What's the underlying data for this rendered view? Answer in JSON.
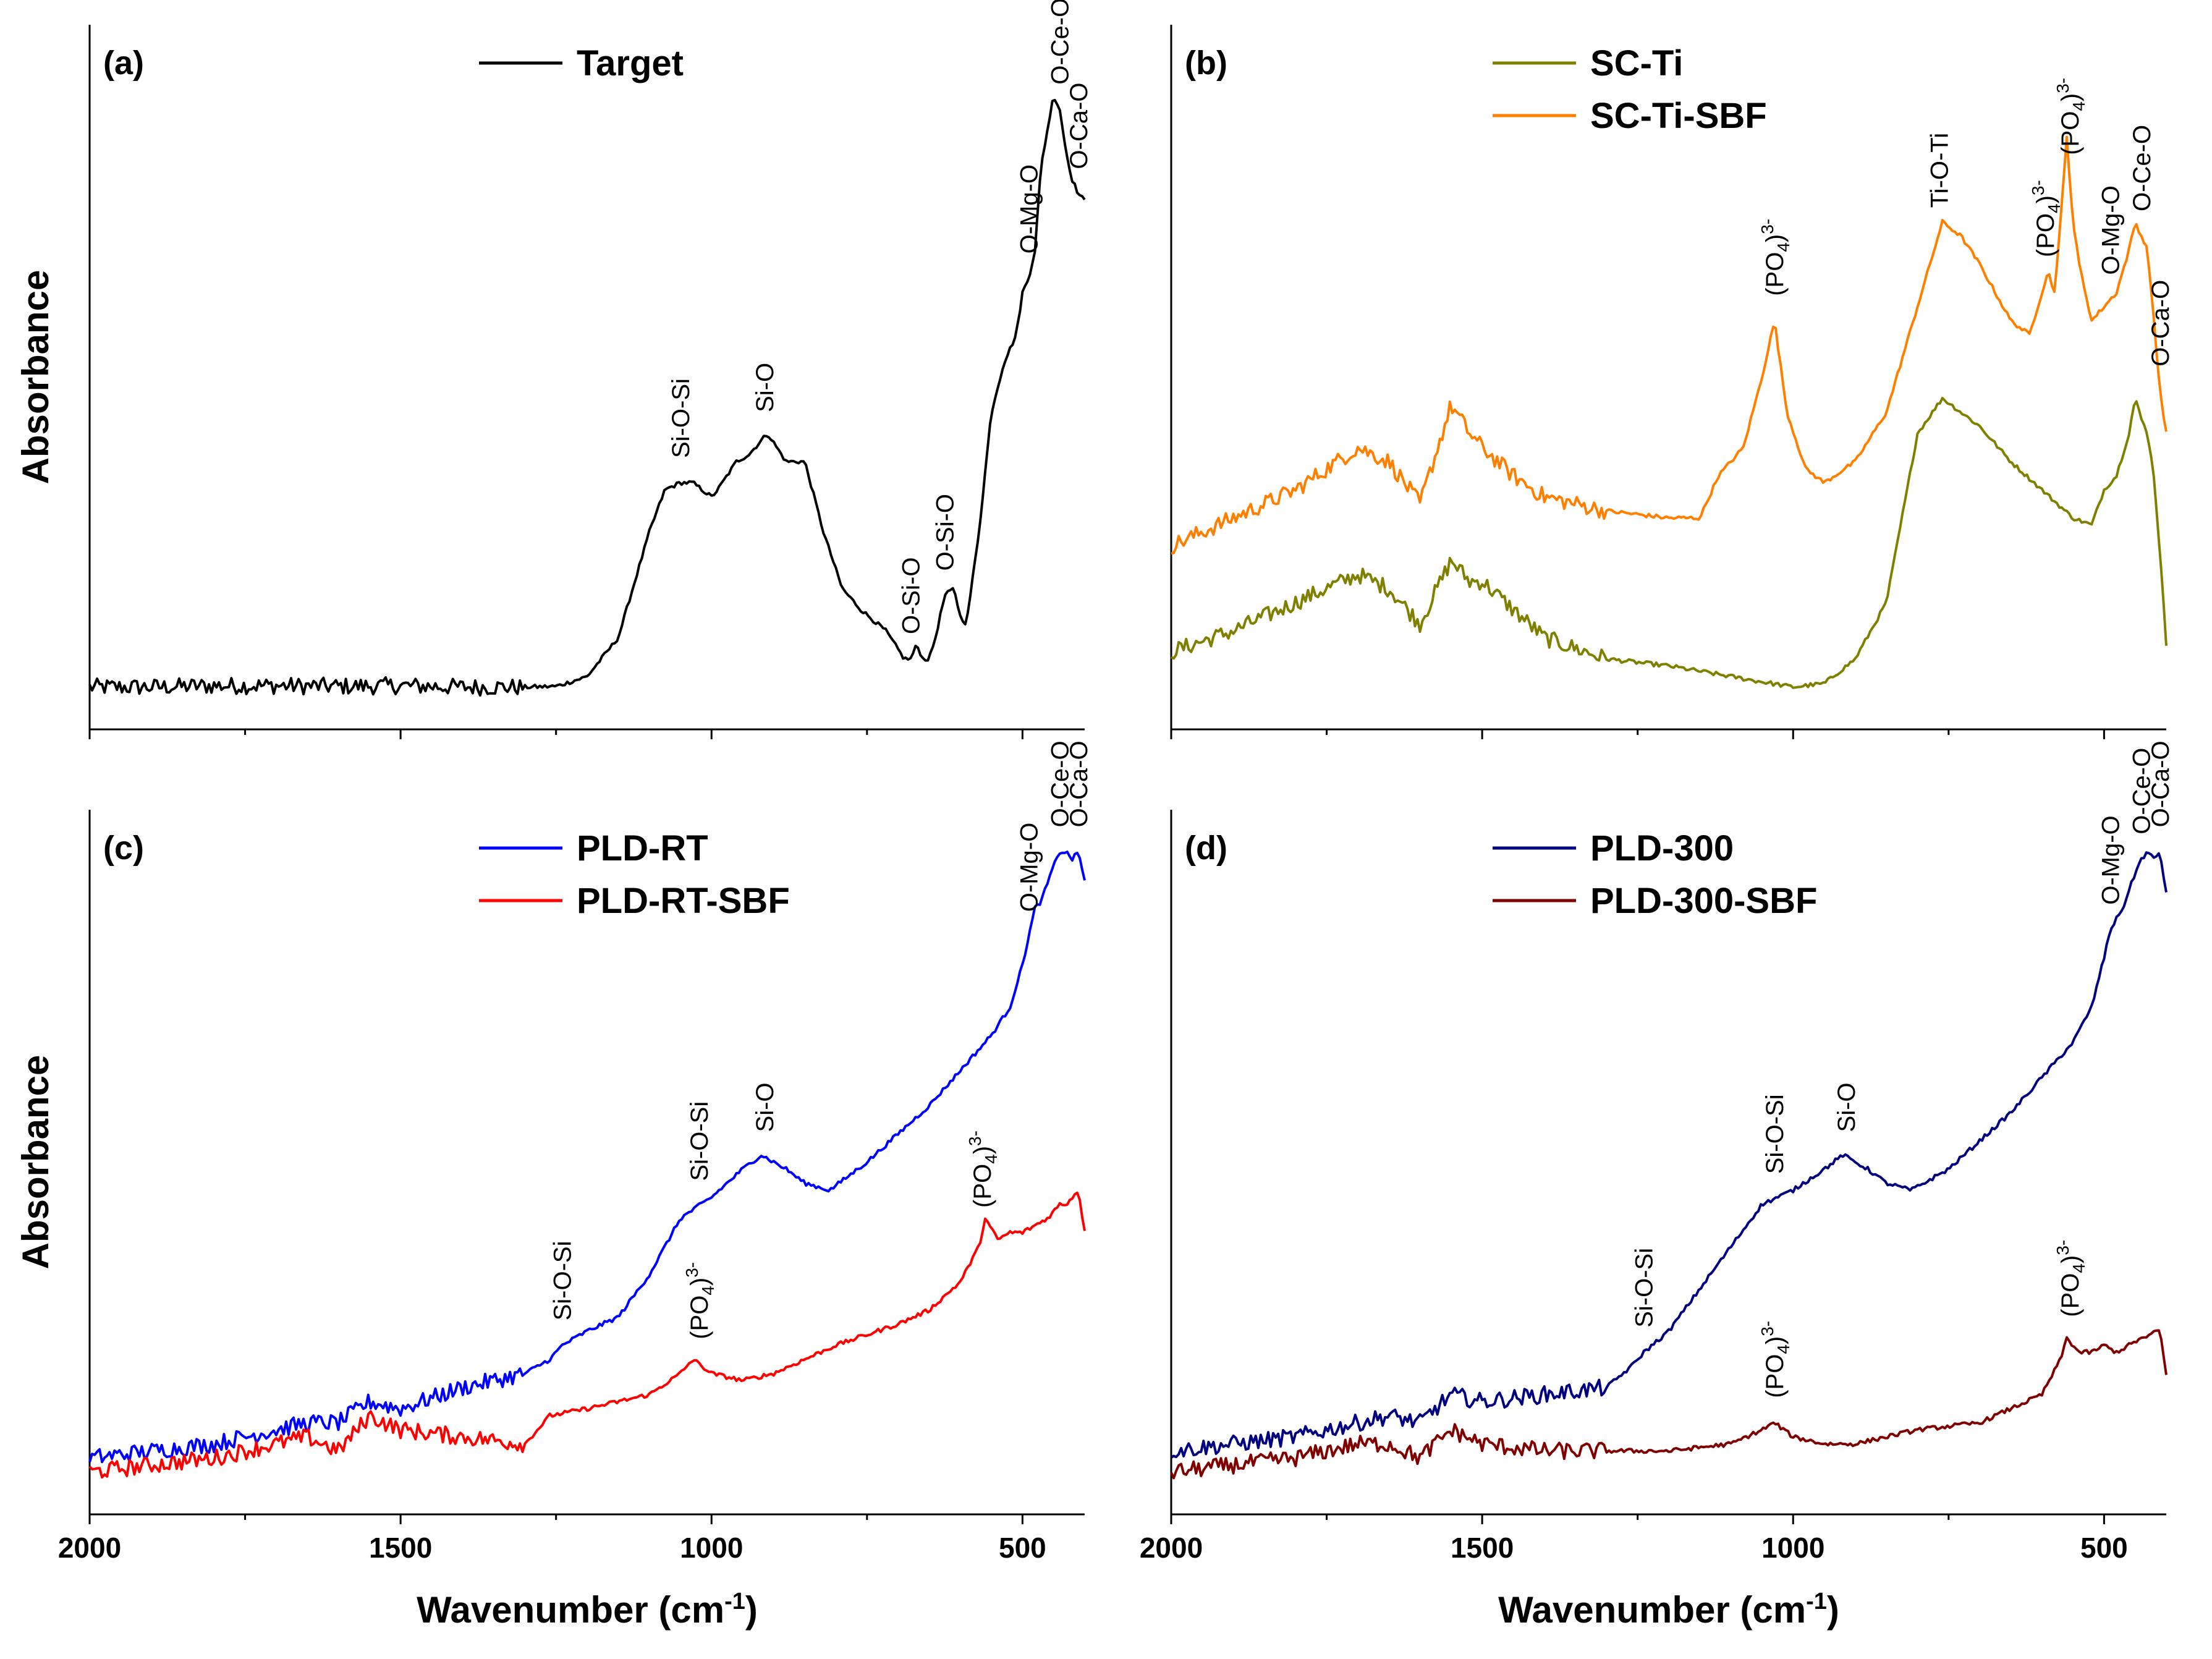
{
  "chart_data": [
    {
      "type": "line",
      "panel": "(a)",
      "ylabel": "Absorbance",
      "xlabel": "",
      "xlim": [
        2000,
        400
      ],
      "ylim": [
        0,
        1
      ],
      "xticks": [
        2000,
        1500,
        1000,
        500
      ],
      "tick_labels_shown": false,
      "legend": "top-center",
      "series": [
        {
          "name": "Target",
          "color": "#000000",
          "x": [
            2000,
            1900,
            1800,
            1700,
            1600,
            1500,
            1400,
            1300,
            1250,
            1200,
            1150,
            1100,
            1075,
            1050,
            1030,
            1000,
            990,
            960,
            940,
            910,
            880,
            850,
            820,
            790,
            760,
            720,
            690,
            680,
            670,
            660,
            650,
            640,
            625,
            610,
            600,
            590,
            570,
            550,
            530,
            510,
            500,
            490,
            480,
            470,
            450,
            440,
            430,
            420,
            410,
            400
          ],
          "y": [
            0.06,
            0.06,
            0.062,
            0.062,
            0.061,
            0.062,
            0.06,
            0.06,
            0.061,
            0.075,
            0.13,
            0.28,
            0.34,
            0.35,
            0.35,
            0.33,
            0.34,
            0.38,
            0.39,
            0.42,
            0.38,
            0.38,
            0.28,
            0.2,
            0.17,
            0.14,
            0.1,
            0.1,
            0.12,
            0.1,
            0.1,
            0.13,
            0.19,
            0.2,
            0.16,
            0.15,
            0.28,
            0.45,
            0.52,
            0.56,
            0.62,
            0.64,
            0.68,
            0.8,
            0.9,
            0.88,
            0.82,
            0.78,
            0.76,
            0.75
          ]
        }
      ],
      "annotations": [
        {
          "text": "Si-O-Si",
          "x": 1050
        },
        {
          "text": "Si-O",
          "x": 915
        },
        {
          "text": "O-Si-O",
          "x": 680
        },
        {
          "text": "O-Si-O",
          "x": 625
        },
        {
          "text": "O-Mg-O",
          "x": 490
        },
        {
          "text": "O-Ce-O",
          "x": 440
        },
        {
          "text": "O-Ca-O",
          "x": 410
        }
      ]
    },
    {
      "type": "line",
      "panel": "(b)",
      "ylabel": "",
      "xlabel": "",
      "xlim": [
        2000,
        400
      ],
      "ylim": [
        0,
        1
      ],
      "xticks": [
        2000,
        1500,
        1000,
        500
      ],
      "tick_labels_shown": false,
      "legend": "top-left",
      "series": [
        {
          "name": "SC-Ti",
          "color": "#808000",
          "x": [
            2000,
            1900,
            1800,
            1700,
            1650,
            1600,
            1550,
            1520,
            1500,
            1400,
            1300,
            1200,
            1100,
            1000,
            950,
            900,
            850,
            800,
            760,
            730,
            700,
            650,
            600,
            550,
            520,
            500,
            480,
            460,
            450,
            440,
            430,
            420,
            410,
            400
          ],
          "y": [
            0.11,
            0.14,
            0.18,
            0.22,
            0.2,
            0.15,
            0.24,
            0.21,
            0.21,
            0.13,
            0.1,
            0.09,
            0.075,
            0.06,
            0.065,
            0.1,
            0.18,
            0.42,
            0.47,
            0.45,
            0.43,
            0.38,
            0.34,
            0.3,
            0.29,
            0.34,
            0.36,
            0.42,
            0.47,
            0.44,
            0.42,
            0.36,
            0.25,
            0.12
          ]
        },
        {
          "name": "SC-Ti-SBF",
          "color": "#FF8000",
          "x": [
            2000,
            1900,
            1800,
            1700,
            1650,
            1600,
            1550,
            1520,
            1500,
            1450,
            1400,
            1300,
            1200,
            1150,
            1120,
            1080,
            1050,
            1030,
            1010,
            980,
            950,
            900,
            850,
            800,
            760,
            730,
            700,
            650,
            620,
            600,
            590,
            580,
            570,
            560,
            550,
            540,
            520,
            500,
            480,
            460,
            450,
            440,
            430,
            420,
            410,
            400
          ],
          "y": [
            0.26,
            0.3,
            0.34,
            0.4,
            0.38,
            0.32,
            0.46,
            0.42,
            0.4,
            0.36,
            0.33,
            0.31,
            0.3,
            0.3,
            0.36,
            0.4,
            0.5,
            0.58,
            0.45,
            0.37,
            0.35,
            0.38,
            0.45,
            0.6,
            0.72,
            0.7,
            0.66,
            0.58,
            0.56,
            0.62,
            0.65,
            0.62,
            0.72,
            0.84,
            0.72,
            0.66,
            0.58,
            0.6,
            0.62,
            0.68,
            0.72,
            0.7,
            0.68,
            0.58,
            0.48,
            0.42
          ]
        }
      ],
      "annotations": [
        {
          "text": "(PO₄)³⁻",
          "x": 1030
        },
        {
          "text": "Ti-O-Ti",
          "x": 765
        },
        {
          "text": "(PO₄)³⁻",
          "x": 595
        },
        {
          "text": "(PO₄)³⁻",
          "x": 555
        },
        {
          "text": "O-Mg-O",
          "x": 490
        },
        {
          "text": "O-Ce-O",
          "x": 440
        },
        {
          "text": "O-Ca-O",
          "x": 410
        }
      ]
    },
    {
      "type": "line",
      "panel": "(c)",
      "ylabel": "Absorbance",
      "xlabel": "Wavenumber (cm⁻¹)",
      "xlim": [
        2000,
        400
      ],
      "ylim": [
        0,
        1
      ],
      "xticks": [
        2000,
        1500,
        1000,
        500
      ],
      "legend": "top-center",
      "series": [
        {
          "name": "PLD-RT",
          "color": "#0000FF",
          "x": [
            2000,
            1900,
            1800,
            1700,
            1650,
            1600,
            1550,
            1500,
            1400,
            1300,
            1260,
            1240,
            1200,
            1150,
            1100,
            1050,
            1000,
            950,
            920,
            880,
            850,
            810,
            750,
            700,
            650,
            600,
            550,
            520,
            500,
            480,
            470,
            450,
            440,
            430,
            420,
            410,
            400
          ],
          "y": [
            0.08,
            0.09,
            0.1,
            0.12,
            0.13,
            0.13,
            0.16,
            0.15,
            0.18,
            0.2,
            0.22,
            0.24,
            0.26,
            0.28,
            0.34,
            0.42,
            0.45,
            0.49,
            0.51,
            0.49,
            0.47,
            0.46,
            0.5,
            0.54,
            0.58,
            0.63,
            0.68,
            0.72,
            0.78,
            0.86,
            0.87,
            0.92,
            0.94,
            0.94,
            0.93,
            0.94,
            0.9
          ]
        },
        {
          "name": "PLD-RT-SBF",
          "color": "#FF0000",
          "x": [
            2000,
            1900,
            1800,
            1700,
            1650,
            1600,
            1550,
            1500,
            1400,
            1300,
            1260,
            1200,
            1100,
            1050,
            1030,
            1000,
            950,
            900,
            850,
            800,
            700,
            650,
            600,
            570,
            560,
            540,
            520,
            500,
            480,
            460,
            440,
            430,
            420,
            410,
            400
          ],
          "y": [
            0.06,
            0.07,
            0.08,
            0.1,
            0.11,
            0.09,
            0.14,
            0.12,
            0.11,
            0.1,
            0.14,
            0.15,
            0.17,
            0.2,
            0.22,
            0.2,
            0.19,
            0.2,
            0.22,
            0.24,
            0.27,
            0.29,
            0.33,
            0.38,
            0.42,
            0.39,
            0.4,
            0.4,
            0.41,
            0.42,
            0.44,
            0.44,
            0.45,
            0.46,
            0.4
          ]
        }
      ],
      "annotations": [
        {
          "text": "Si-O-Si",
          "x": 1240
        },
        {
          "text": "Si-O-Si",
          "x": 1020
        },
        {
          "text": "Si-O",
          "x": 915
        },
        {
          "text": "(PO₄)³⁻",
          "x": 1020
        },
        {
          "text": "(PO₄)³⁻",
          "x": 565
        },
        {
          "text": "O-Mg-O",
          "x": 490
        },
        {
          "text": "O-Ce-O",
          "x": 440
        },
        {
          "text": "O-Ca-O",
          "x": 410
        }
      ]
    },
    {
      "type": "line",
      "panel": "(d)",
      "ylabel": "",
      "xlabel": "Wavenumber (cm⁻¹)",
      "xlim": [
        2000,
        400
      ],
      "ylim": [
        0,
        1
      ],
      "xticks": [
        2000,
        1500,
        1000,
        500
      ],
      "legend": "top-left",
      "series": [
        {
          "name": "PLD-300",
          "color": "#000080",
          "x": [
            2000,
            1900,
            1800,
            1700,
            1650,
            1600,
            1550,
            1500,
            1400,
            1300,
            1260,
            1240,
            1200,
            1150,
            1100,
            1050,
            1000,
            950,
            920,
            880,
            850,
            810,
            750,
            700,
            650,
            600,
            550,
            520,
            500,
            490,
            470,
            450,
            440,
            430,
            420,
            410,
            400
          ],
          "y": [
            0.09,
            0.1,
            0.11,
            0.13,
            0.14,
            0.13,
            0.17,
            0.16,
            0.17,
            0.18,
            0.21,
            0.23,
            0.26,
            0.32,
            0.38,
            0.44,
            0.46,
            0.49,
            0.51,
            0.49,
            0.47,
            0.46,
            0.49,
            0.53,
            0.57,
            0.62,
            0.67,
            0.72,
            0.79,
            0.83,
            0.86,
            0.91,
            0.93,
            0.94,
            0.93,
            0.94,
            0.88
          ]
        },
        {
          "name": "PLD-300-SBF",
          "color": "#800000",
          "x": [
            2000,
            1900,
            1800,
            1700,
            1650,
            1600,
            1550,
            1500,
            1400,
            1300,
            1200,
            1100,
            1050,
            1030,
            1000,
            950,
            900,
            850,
            800,
            700,
            650,
            600,
            570,
            560,
            540,
            520,
            500,
            480,
            460,
            440,
            430,
            420,
            410,
            400
          ],
          "y": [
            0.06,
            0.07,
            0.08,
            0.1,
            0.1,
            0.08,
            0.12,
            0.1,
            0.09,
            0.09,
            0.09,
            0.1,
            0.12,
            0.13,
            0.11,
            0.1,
            0.1,
            0.11,
            0.12,
            0.13,
            0.15,
            0.17,
            0.22,
            0.25,
            0.23,
            0.23,
            0.24,
            0.23,
            0.24,
            0.25,
            0.25,
            0.26,
            0.26,
            0.2
          ]
        }
      ],
      "annotations": [
        {
          "text": "Si-O-Si",
          "x": 1240
        },
        {
          "text": "Si-O-Si",
          "x": 1030
        },
        {
          "text": "Si-O",
          "x": 915
        },
        {
          "text": "(PO₄)³⁻",
          "x": 1030
        },
        {
          "text": "(PO₄)³⁻",
          "x": 555
        },
        {
          "text": "O-Mg-O",
          "x": 490
        },
        {
          "text": "O-Ce-O",
          "x": 440
        },
        {
          "text": "O-Ca-O",
          "x": 410
        }
      ]
    }
  ]
}
